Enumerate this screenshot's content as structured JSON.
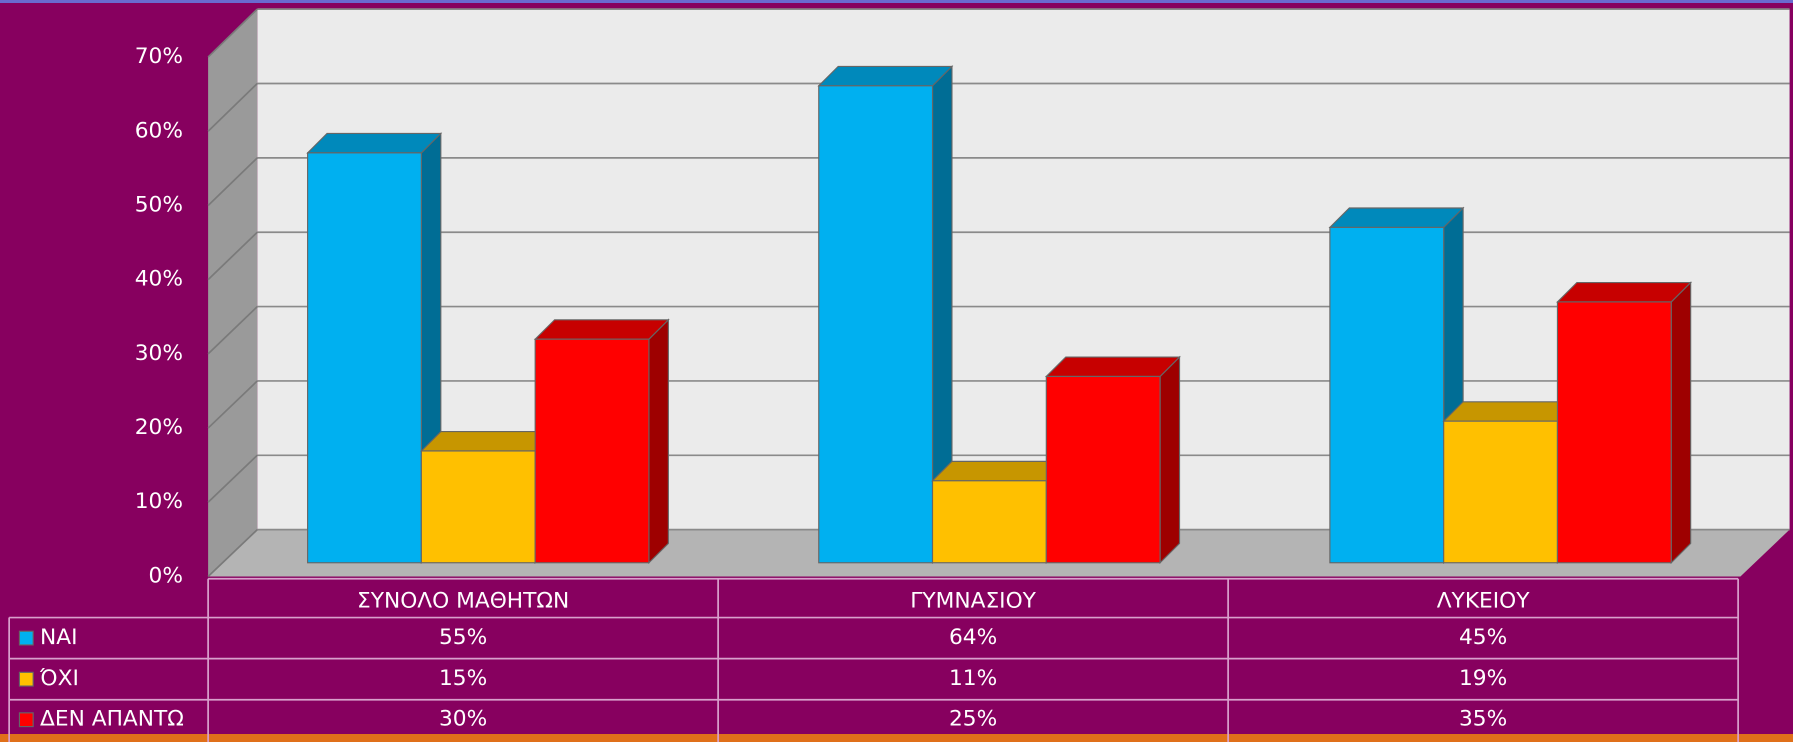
{
  "chart_data": {
    "type": "bar3d",
    "categories": [
      "ΣΥΝΟΛΟ ΜΑΘΗΤΩΝ",
      "ΓΥΜΝΑΣΙΟΥ",
      "ΛΥΚΕΙΟΥ"
    ],
    "series": [
      {
        "name": "ΝΑΙ",
        "color": "#00b0f0",
        "values": [
          55,
          64,
          45
        ],
        "value_labels": [
          "55%",
          "64%",
          "45%"
        ]
      },
      {
        "name": "ΌΧΙ",
        "color": "#ffc000",
        "values": [
          15,
          11,
          19
        ],
        "value_labels": [
          "15%",
          "11%",
          "19%"
        ]
      },
      {
        "name": "ΔΕΝ ΑΠΑΝΤΩ",
        "color": "#ff0000",
        "values": [
          30,
          25,
          35
        ],
        "value_labels": [
          "30%",
          "25%",
          "35%"
        ]
      }
    ],
    "ylim": [
      0,
      70
    ],
    "yticks": [
      {
        "value": 0,
        "label": "0%"
      },
      {
        "value": 10,
        "label": "10%"
      },
      {
        "value": 20,
        "label": "20%"
      },
      {
        "value": 30,
        "label": "30%"
      },
      {
        "value": 40,
        "label": "40%"
      },
      {
        "value": 50,
        "label": "50%"
      },
      {
        "value": 60,
        "label": "60%"
      },
      {
        "value": 70,
        "label": "70%"
      }
    ],
    "grid": true
  }
}
